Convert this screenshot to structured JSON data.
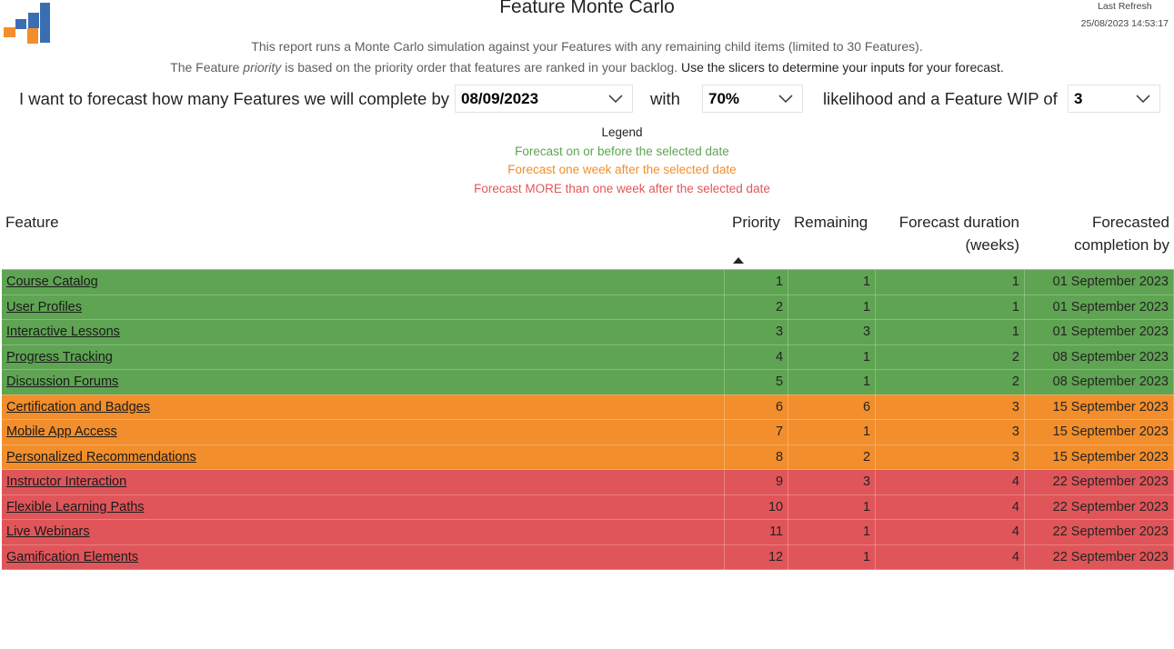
{
  "header": {
    "title": "Feature Monte Carlo",
    "last_refresh_label": "Last Refresh",
    "last_refresh_value": "25/08/2023 14:53:17"
  },
  "description": {
    "line1": "This report runs a Monte Carlo simulation against your Features with any remaining child items (limited to 30 Features).",
    "line2_a": "The Feature ",
    "line2_italic": "priority",
    "line2_b": " is based on the priority order that features are ranked in your backlog.",
    "line2_c": " Use the slicers to determine your inputs for your forecast."
  },
  "forecast_inputs": {
    "prefix": "I want to forecast how many Features we will complete by",
    "date_value": "08/09/2023",
    "with_label": "with",
    "likelihood_value": "70%",
    "wip_label": "likelihood and a Feature WIP of",
    "wip_value": "3"
  },
  "legend": {
    "title": "Legend",
    "green_text": "Forecast on or before the selected date",
    "orange_text": "Forecast one week after the selected date",
    "red_text": "Forecast MORE than one week after the selected date",
    "colors": {
      "green": "#5ea452",
      "orange": "#f28e2b",
      "red": "#e15759"
    }
  },
  "table": {
    "columns": {
      "feature": "Feature",
      "priority": "Priority",
      "remaining": "Remaining",
      "duration_1": "Forecast duration",
      "duration_2": "(weeks)",
      "completion_1": "Forecasted",
      "completion_2": "completion by"
    },
    "row_colors": {
      "green": "#5ea452",
      "orange": "#f28e2b",
      "red": "#e05559"
    },
    "rows": [
      {
        "feature": "Course Catalog",
        "priority": "1",
        "remaining": "1",
        "duration": "1",
        "completion": "01 September 2023",
        "status": "green"
      },
      {
        "feature": "User Profiles",
        "priority": "2",
        "remaining": "1",
        "duration": "1",
        "completion": "01 September 2023",
        "status": "green"
      },
      {
        "feature": "Interactive Lessons",
        "priority": "3",
        "remaining": "3",
        "duration": "1",
        "completion": "01 September 2023",
        "status": "green"
      },
      {
        "feature": "Progress Tracking",
        "priority": "4",
        "remaining": "1",
        "duration": "2",
        "completion": "08 September 2023",
        "status": "green"
      },
      {
        "feature": "Discussion Forums",
        "priority": "5",
        "remaining": "1",
        "duration": "2",
        "completion": "08 September 2023",
        "status": "green"
      },
      {
        "feature": "Certification and Badges",
        "priority": "6",
        "remaining": "6",
        "duration": "3",
        "completion": "15 September 2023",
        "status": "orange"
      },
      {
        "feature": "Mobile App Access",
        "priority": "7",
        "remaining": "1",
        "duration": "3",
        "completion": "15 September 2023",
        "status": "orange"
      },
      {
        "feature": "Personalized Recommendations",
        "priority": "8",
        "remaining": "2",
        "duration": "3",
        "completion": "15 September 2023",
        "status": "orange"
      },
      {
        "feature": "Instructor Interaction",
        "priority": "9",
        "remaining": "3",
        "duration": "4",
        "completion": "22 September 2023",
        "status": "red"
      },
      {
        "feature": "Flexible Learning Paths",
        "priority": "10",
        "remaining": "1",
        "duration": "4",
        "completion": "22 September 2023",
        "status": "red"
      },
      {
        "feature": "Live Webinars",
        "priority": "11",
        "remaining": "1",
        "duration": "4",
        "completion": "22 September 2023",
        "status": "red"
      },
      {
        "feature": "Gamification Elements",
        "priority": "12",
        "remaining": "1",
        "duration": "4",
        "completion": "22 September 2023",
        "status": "red"
      }
    ]
  }
}
